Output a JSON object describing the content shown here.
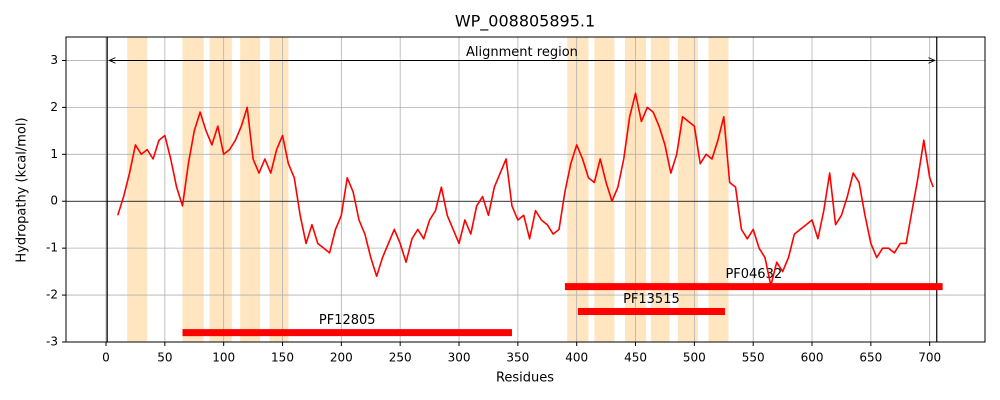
{
  "chart_data": {
    "type": "line",
    "title": "WP_008805895.1",
    "x_label": "Residues",
    "y_label": "Hydropathy (kcal/mol)",
    "xlim": [
      -34,
      747
    ],
    "ylim": [
      -3,
      3.5
    ],
    "xticks": [
      0,
      50,
      100,
      150,
      200,
      250,
      300,
      350,
      400,
      450,
      500,
      550,
      600,
      650,
      700
    ],
    "yticks": [
      -3,
      -2,
      -1,
      0,
      1,
      2,
      3
    ],
    "grid": true,
    "zero_line": 0,
    "x": [
      10,
      15,
      20,
      25,
      30,
      35,
      40,
      45,
      50,
      55,
      60,
      65,
      70,
      75,
      80,
      85,
      90,
      95,
      100,
      105,
      110,
      115,
      120,
      125,
      130,
      135,
      140,
      145,
      150,
      155,
      160,
      165,
      170,
      175,
      180,
      185,
      190,
      195,
      200,
      205,
      210,
      215,
      220,
      225,
      230,
      235,
      240,
      245,
      250,
      255,
      260,
      265,
      270,
      275,
      280,
      285,
      290,
      295,
      300,
      305,
      310,
      315,
      320,
      325,
      330,
      335,
      340,
      345,
      350,
      355,
      360,
      365,
      370,
      375,
      380,
      385,
      390,
      395,
      400,
      405,
      410,
      415,
      420,
      425,
      430,
      435,
      440,
      445,
      450,
      455,
      460,
      465,
      470,
      475,
      480,
      485,
      490,
      495,
      500,
      505,
      510,
      515,
      520,
      525,
      530,
      535,
      540,
      545,
      550,
      555,
      560,
      565,
      570,
      575,
      580,
      585,
      590,
      595,
      600,
      605,
      610,
      615,
      620,
      625,
      630,
      635,
      640,
      645,
      650,
      655,
      660,
      665,
      670,
      675,
      680,
      685,
      690,
      695,
      700,
      703
    ],
    "series": [
      {
        "name": "Hydropathy",
        "color": "#ff0000",
        "values": [
          -0.3,
          0.1,
          0.6,
          1.2,
          1.0,
          1.1,
          0.9,
          1.3,
          1.4,
          0.9,
          0.3,
          -0.1,
          0.8,
          1.5,
          1.9,
          1.5,
          1.2,
          1.6,
          1.0,
          1.1,
          1.3,
          1.6,
          2.0,
          0.9,
          0.6,
          0.9,
          0.6,
          1.1,
          1.4,
          0.8,
          0.5,
          -0.3,
          -0.9,
          -0.5,
          -0.9,
          -1.0,
          -1.1,
          -0.6,
          -0.3,
          0.5,
          0.2,
          -0.4,
          -0.7,
          -1.2,
          -1.6,
          -1.2,
          -0.9,
          -0.6,
          -0.9,
          -1.3,
          -0.8,
          -0.6,
          -0.8,
          -0.4,
          -0.2,
          0.3,
          -0.3,
          -0.6,
          -0.9,
          -0.4,
          -0.7,
          -0.1,
          0.1,
          -0.3,
          0.3,
          0.6,
          0.9,
          -0.1,
          -0.4,
          -0.3,
          -0.8,
          -0.2,
          -0.4,
          -0.5,
          -0.7,
          -0.6,
          0.2,
          0.8,
          1.2,
          0.9,
          0.5,
          0.4,
          0.9,
          0.4,
          0.0,
          0.3,
          0.9,
          1.8,
          2.3,
          1.7,
          2.0,
          1.9,
          1.6,
          1.2,
          0.6,
          1.0,
          1.8,
          1.7,
          1.6,
          0.8,
          1.0,
          0.9,
          1.3,
          1.8,
          0.4,
          0.3,
          -0.6,
          -0.8,
          -0.6,
          -1.0,
          -1.2,
          -1.8,
          -1.3,
          -1.5,
          -1.2,
          -0.7,
          -0.6,
          -0.5,
          -0.4,
          -0.8,
          -0.2,
          0.6,
          -0.5,
          -0.3,
          0.1,
          0.6,
          0.4,
          -0.3,
          -0.9,
          -1.2,
          -1.0,
          -1.0,
          -1.1,
          -0.9,
          -0.9,
          -0.2,
          0.5,
          1.3,
          0.5,
          0.3
        ]
      }
    ],
    "shaded_regions": [
      [
        18,
        35
      ],
      [
        65,
        83
      ],
      [
        88,
        107
      ],
      [
        114,
        131
      ],
      [
        139,
        155
      ],
      [
        392,
        410
      ],
      [
        415,
        432
      ],
      [
        441,
        459
      ],
      [
        463,
        479
      ],
      [
        486,
        503
      ],
      [
        512,
        529
      ]
    ],
    "shade_color": "#ffe6c0",
    "alignment_region": {
      "label": "Alignment region",
      "start": 1,
      "end": 706,
      "y": 3
    },
    "domains": [
      {
        "name": "PF12805",
        "start": 65,
        "end": 345,
        "y": -2.8
      },
      {
        "name": "PF13515",
        "start": 401,
        "end": 526,
        "y": -2.35
      },
      {
        "name": "PF04632",
        "start": 390,
        "end": 711,
        "y": -1.82
      }
    ],
    "domain_color": "#ff0000"
  }
}
